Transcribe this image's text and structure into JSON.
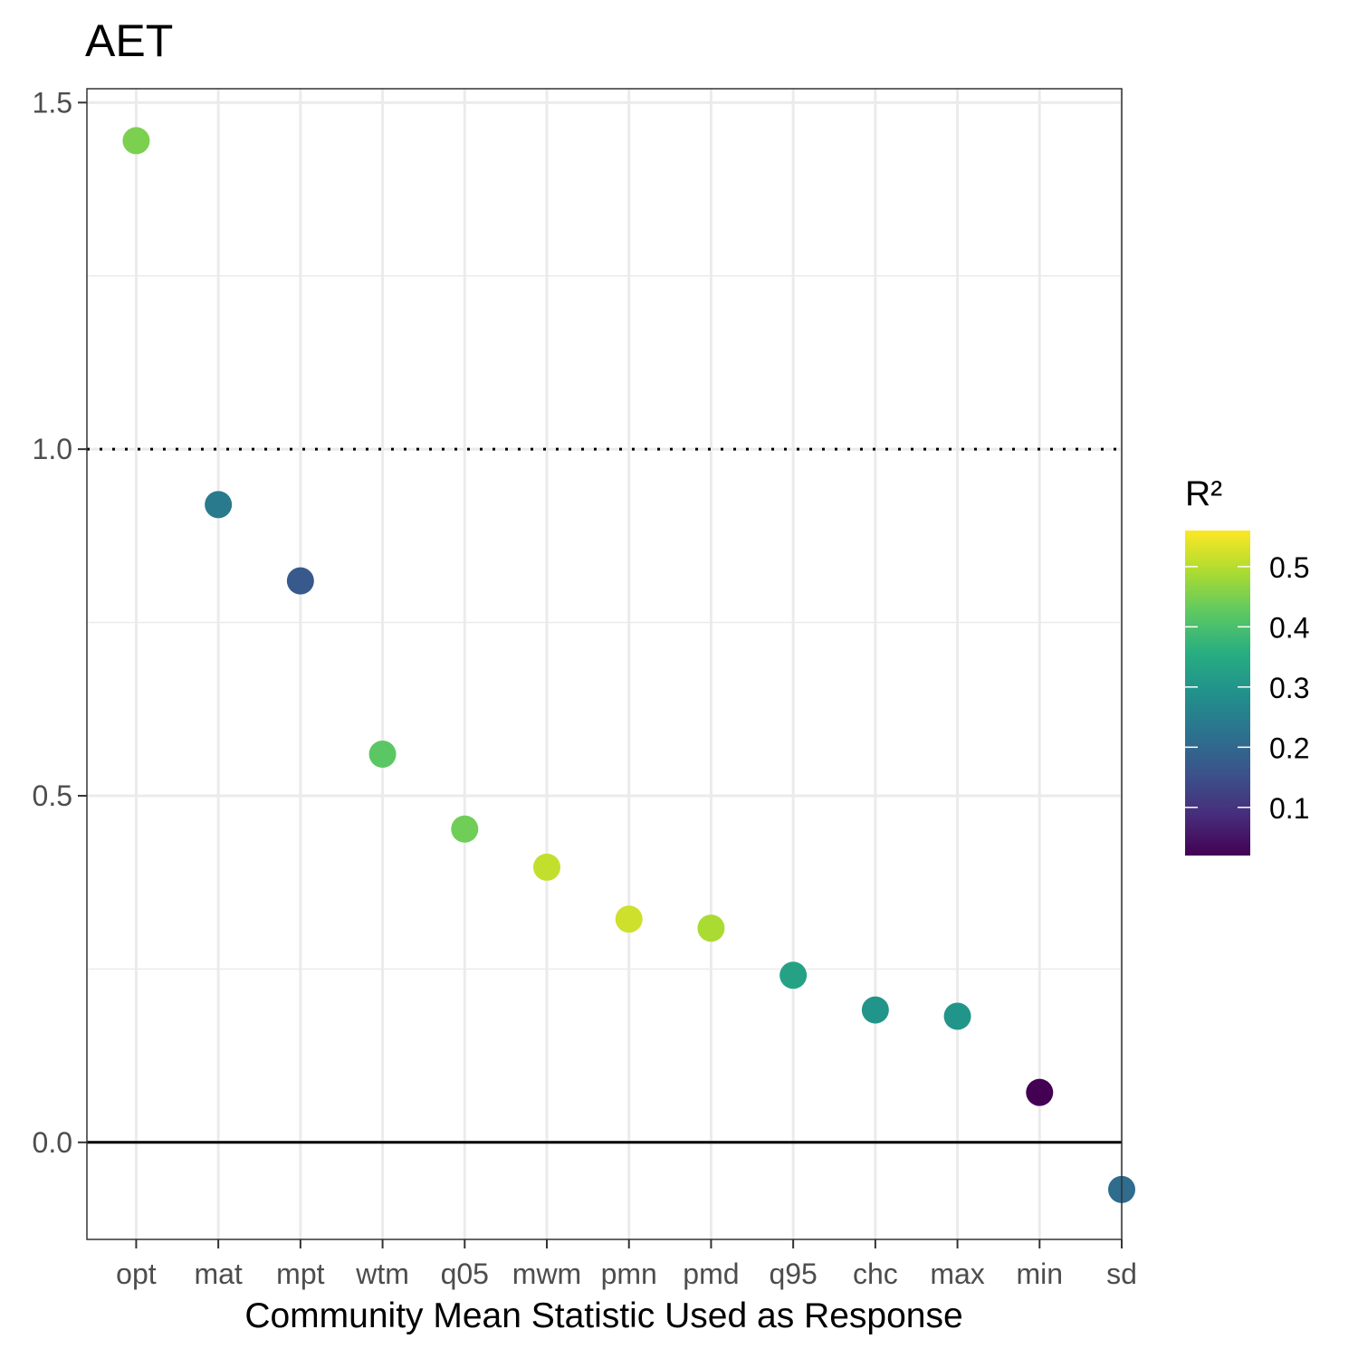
{
  "chart_data": {
    "type": "scatter",
    "title": "AET",
    "xlabel": "Community Mean Statistic Used as Response",
    "ylabel": "",
    "categories": [
      "opt",
      "mat",
      "mpt",
      "wtm",
      "q05",
      "mwm",
      "pmn",
      "pmd",
      "q95",
      "chc",
      "max",
      "min",
      "sd"
    ],
    "values": [
      1.445,
      0.92,
      0.81,
      0.56,
      0.452,
      0.397,
      0.322,
      0.309,
      0.241,
      0.191,
      0.182,
      0.072,
      -0.068
    ],
    "r2": [
      0.45,
      0.24,
      0.17,
      0.42,
      0.44,
      0.51,
      0.52,
      0.49,
      0.33,
      0.3,
      0.3,
      0.02,
      0.21
    ],
    "ylim": [
      -0.14,
      1.52
    ],
    "yticks": [
      0.0,
      0.5,
      1.0,
      1.5
    ],
    "ytick_labels": [
      "0.0",
      "0.5",
      "1.0",
      "1.5"
    ],
    "reference_lines": [
      {
        "y": 1.0,
        "style": "dotted"
      },
      {
        "y": 0.0,
        "style": "solid"
      }
    ],
    "grid": true,
    "legend": {
      "title": "R²",
      "type": "colorbar",
      "palette": "viridis",
      "range": [
        0.02,
        0.56
      ],
      "ticks": [
        0.1,
        0.2,
        0.3,
        0.4,
        0.5
      ],
      "tick_labels": [
        "0.1",
        "0.2",
        "0.3",
        "0.4",
        "0.5"
      ],
      "placement": "right"
    }
  }
}
